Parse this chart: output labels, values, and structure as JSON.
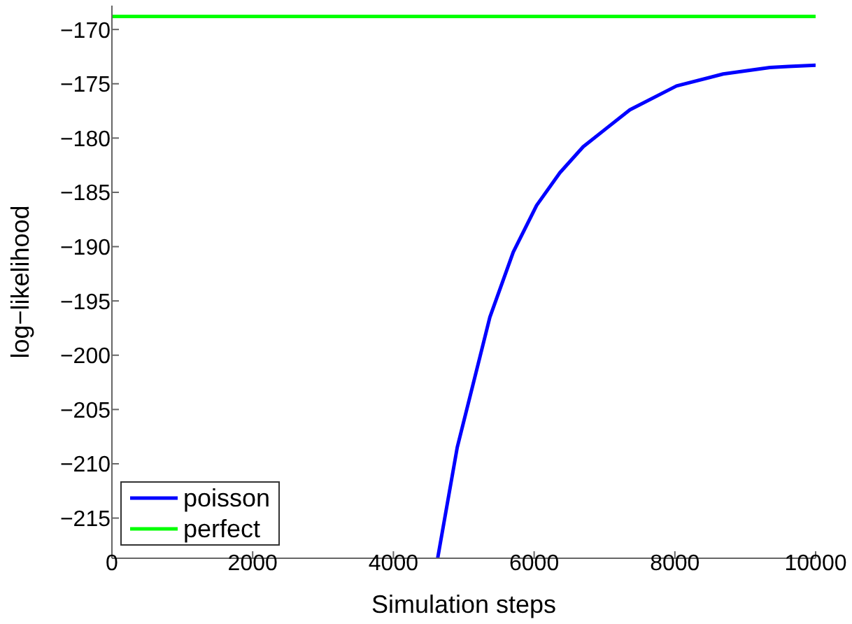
{
  "chart_data": {
    "type": "line",
    "xlabel": "Simulation steps",
    "ylabel": "log−likelihood",
    "xlim": [
      0,
      10000
    ],
    "xticks": [
      0,
      2000,
      4000,
      6000,
      8000,
      10000
    ],
    "ylim": [
      -218.7,
      -167.8
    ],
    "yticks": [
      -215,
      -210,
      -205,
      -200,
      -195,
      -190,
      -185,
      -180,
      -175,
      -170
    ],
    "grid": false,
    "legend": "bottom left",
    "marker": "none",
    "line_style": "solid",
    "series": [
      {
        "name": "poisson",
        "color": "#0000ff",
        "x": [
          4629,
          4907,
          5371,
          5703,
          6035,
          6365,
          6697,
          7028,
          7360,
          8023,
          8686,
          9350,
          9615,
          10000
        ],
        "values": [
          -218.7,
          -208.5,
          -196.5,
          -190.5,
          -186.2,
          -183.2,
          -180.8,
          -179.1,
          -177.4,
          -175.2,
          -174.1,
          -173.5,
          -173.4,
          -173.3
        ]
      },
      {
        "name": "perfect",
        "color": "#00ff00",
        "x": [
          0,
          10000
        ],
        "values": [
          -168.8,
          -168.8
        ]
      }
    ]
  }
}
